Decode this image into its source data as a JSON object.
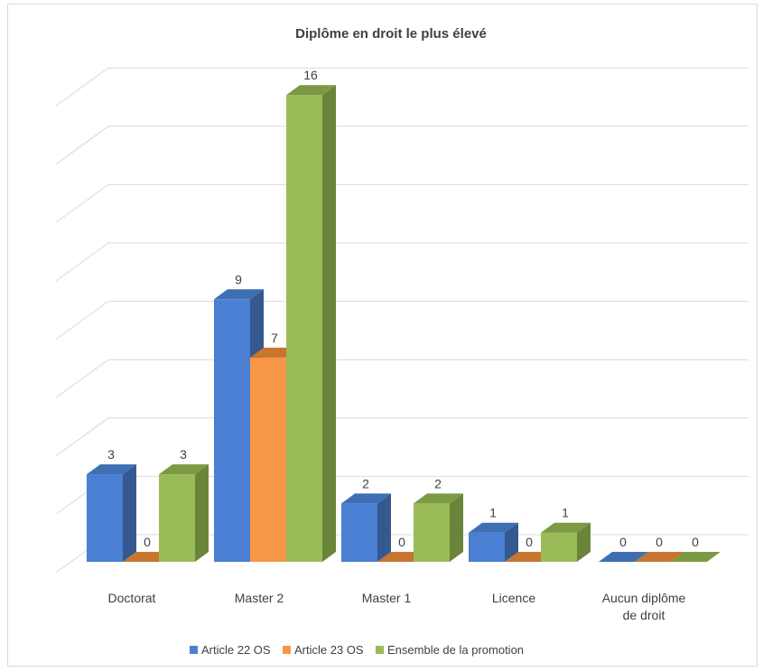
{
  "chart_data": {
    "type": "bar",
    "title": "Diplôme en droit le plus élevé",
    "categories": [
      "Doctorat",
      "Master 2",
      "Master 1",
      "Licence",
      "Aucun diplôme de droit"
    ],
    "category_lines": [
      [
        "Doctorat"
      ],
      [
        "Master 2"
      ],
      [
        "Master 1"
      ],
      [
        "Licence"
      ],
      [
        "Aucun diplôme",
        "de droit"
      ]
    ],
    "series": [
      {
        "name": "Article 22 OS",
        "values": [
          3,
          9,
          2,
          1,
          0
        ],
        "color": "#4a7fd3",
        "dark": "#34598f",
        "top": "#3f6fb3"
      },
      {
        "name": "Article 23 OS",
        "values": [
          0,
          7,
          0,
          0,
          0
        ],
        "color": "#f79646",
        "dark": "#b36a2e",
        "top": "#c8752f"
      },
      {
        "name": "Ensemble de la promotion",
        "values": [
          3,
          16,
          2,
          1,
          0
        ],
        "color": "#9bbb59",
        "dark": "#6a8439",
        "top": "#7c9a44"
      }
    ],
    "ylim": [
      0,
      16
    ],
    "grid": true,
    "legend": "bottom",
    "style": "3d-clustered-column"
  }
}
